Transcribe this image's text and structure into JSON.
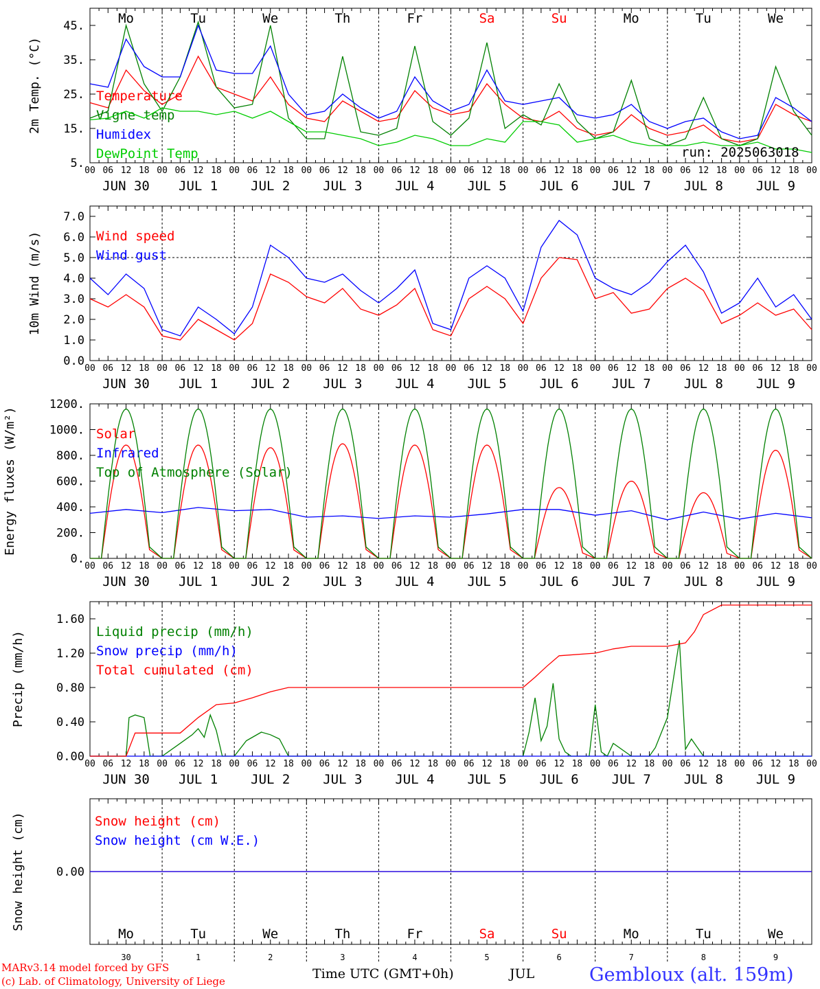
{
  "header": {
    "run_label": "run: 2025063018"
  },
  "footer": {
    "model_line": "MARv3.14 model forced by GFS",
    "copyright_line": "(c) Lab. of Climatology, University of Liege",
    "time_axis_label": "Time UTC (GMT+0h)",
    "month_label": "JUL",
    "station": "Gembloux (alt. 159m)"
  },
  "days": {
    "weekdays": [
      "Mo",
      "Tu",
      "We",
      "Th",
      "Fr",
      "Sa",
      "Su",
      "Mo",
      "Tu",
      "We"
    ],
    "weekend_flags": [
      false,
      false,
      false,
      false,
      false,
      true,
      true,
      false,
      false,
      false
    ],
    "date_labels": [
      "JUN 30",
      "JUL  1",
      "JUL  2",
      "JUL  3",
      "JUL  4",
      "JUL  5",
      "JUL  6",
      "JUL  7",
      "JUL  8",
      "JUL  9"
    ],
    "day_numbers": [
      "30",
      "1",
      "2",
      "3",
      "4",
      "5",
      "6",
      "7",
      "8",
      "9"
    ],
    "hour_ticks": [
      "00",
      "06",
      "12",
      "18"
    ],
    "final_tick": "00"
  },
  "colors": {
    "red": "#ff0000",
    "green": "#008000",
    "blue": "#0000ff",
    "lightgreen": "#00cc00",
    "weekend": "#ff0000"
  },
  "chart_data": [
    {
      "type": "line",
      "id": "temperature",
      "ylabel": "2m Temp. (°C)",
      "ylim": [
        5,
        50
      ],
      "yticks": [
        "5.",
        "15.",
        "25.",
        "35.",
        "45."
      ],
      "ytick_values": [
        5,
        15,
        25,
        35,
        45
      ],
      "x_unit": "hours since JUN 30 00 UTC",
      "grid_days": true,
      "series": [
        {
          "name": "Temperature",
          "color": "#ff0000",
          "x": [
            0,
            6,
            12,
            18,
            24,
            30,
            36,
            42,
            48,
            54,
            60,
            66,
            72,
            78,
            84,
            90,
            96,
            102,
            108,
            114,
            120,
            126,
            132,
            138,
            144,
            150,
            156,
            162,
            168,
            174,
            180,
            186,
            192,
            198,
            204,
            210,
            216,
            222,
            228,
            234,
            240
          ],
          "y": [
            22.5,
            21,
            32,
            26,
            22,
            25,
            36,
            27,
            25,
            23,
            30,
            22,
            18,
            17,
            23,
            20,
            17,
            18,
            26,
            21,
            19,
            20,
            28,
            22,
            18,
            17,
            20,
            15,
            13,
            14,
            19,
            15,
            13,
            14,
            16,
            12,
            11,
            12,
            22,
            19,
            17
          ]
        },
        {
          "name": "Vigne temp",
          "color": "#008000",
          "x": [
            0,
            6,
            12,
            18,
            24,
            30,
            36,
            42,
            48,
            54,
            60,
            66,
            72,
            78,
            84,
            90,
            96,
            102,
            108,
            114,
            120,
            126,
            132,
            138,
            144,
            150,
            156,
            162,
            168,
            174,
            180,
            186,
            192,
            198,
            204,
            210,
            216,
            222,
            228,
            234,
            240
          ],
          "y": [
            18,
            20,
            45,
            28,
            20,
            30,
            46,
            27,
            21,
            22,
            45,
            18,
            12,
            12,
            36,
            14,
            13,
            15,
            39,
            17,
            13,
            18,
            40,
            15,
            19,
            16,
            28,
            17,
            12,
            14,
            29,
            12,
            10,
            12,
            24,
            12,
            10,
            12,
            33,
            20,
            13
          ]
        },
        {
          "name": "Humidex",
          "color": "#0000ff",
          "x": [
            0,
            6,
            12,
            18,
            24,
            30,
            36,
            42,
            48,
            54,
            60,
            66,
            72,
            78,
            84,
            90,
            96,
            102,
            108,
            114,
            120,
            126,
            132,
            138,
            144,
            150,
            156,
            162,
            168,
            174,
            180,
            186,
            192,
            198,
            204,
            210,
            216,
            222,
            228,
            234,
            240
          ],
          "y": [
            28,
            27,
            41,
            33,
            30,
            30,
            45,
            32,
            31,
            31,
            39,
            25,
            19,
            20,
            25,
            21,
            18,
            20,
            30,
            23,
            20,
            22,
            32,
            23,
            22,
            23,
            24,
            19,
            18,
            19,
            22,
            17,
            15,
            17,
            18,
            14,
            12,
            13,
            24,
            21,
            17
          ]
        },
        {
          "name": "DewPoint Temp",
          "color": "#00cc00",
          "x": [
            0,
            6,
            12,
            18,
            24,
            30,
            36,
            42,
            48,
            54,
            60,
            66,
            72,
            78,
            84,
            90,
            96,
            102,
            108,
            114,
            120,
            126,
            132,
            138,
            144,
            150,
            156,
            162,
            168,
            174,
            180,
            186,
            192,
            198,
            204,
            210,
            216,
            222,
            228,
            234,
            240
          ],
          "y": [
            17.5,
            18,
            20,
            18,
            21,
            20,
            20,
            19,
            20,
            18,
            20,
            17,
            14,
            14,
            13,
            12,
            10,
            11,
            13,
            12,
            10,
            10,
            12,
            11,
            17,
            17,
            16,
            11,
            12,
            13,
            11,
            10,
            10,
            10,
            11,
            10,
            10,
            11,
            9,
            9,
            8
          ]
        }
      ]
    },
    {
      "type": "line",
      "id": "wind",
      "ylabel": "10m Wind (m/s)",
      "ylim": [
        0,
        7.5
      ],
      "yticks": [
        "0.0",
        "1.0",
        "2.0",
        "3.0",
        "4.0",
        "5.0",
        "6.0",
        "7.0"
      ],
      "ytick_values": [
        0,
        1,
        2,
        3,
        4,
        5,
        6,
        7
      ],
      "reference_line": 5.0,
      "series": [
        {
          "name": "Wind speed",
          "color": "#ff0000",
          "x": [
            0,
            6,
            12,
            18,
            24,
            30,
            36,
            42,
            48,
            54,
            60,
            66,
            72,
            78,
            84,
            90,
            96,
            102,
            108,
            114,
            120,
            126,
            132,
            138,
            144,
            150,
            156,
            162,
            168,
            174,
            180,
            186,
            192,
            198,
            204,
            210,
            216,
            222,
            228,
            234,
            240
          ],
          "y": [
            3.0,
            2.6,
            3.2,
            2.6,
            1.2,
            1.0,
            2.0,
            1.5,
            1.0,
            1.8,
            4.2,
            3.8,
            3.1,
            2.8,
            3.5,
            2.5,
            2.2,
            2.7,
            3.5,
            1.5,
            1.2,
            3.0,
            3.6,
            3.0,
            1.8,
            4.0,
            5.0,
            4.9,
            3.0,
            3.3,
            2.3,
            2.5,
            3.5,
            4.0,
            3.4,
            1.8,
            2.2,
            2.8,
            2.2,
            2.5,
            1.5
          ]
        },
        {
          "name": "Wind gust",
          "color": "#0000ff",
          "x": [
            0,
            6,
            12,
            18,
            24,
            30,
            36,
            42,
            48,
            54,
            60,
            66,
            72,
            78,
            84,
            90,
            96,
            102,
            108,
            114,
            120,
            126,
            132,
            138,
            144,
            150,
            156,
            162,
            168,
            174,
            180,
            186,
            192,
            198,
            204,
            210,
            216,
            222,
            228,
            234,
            240
          ],
          "y": [
            4.0,
            3.2,
            4.2,
            3.5,
            1.5,
            1.2,
            2.6,
            2.0,
            1.3,
            2.6,
            5.6,
            5.0,
            4.0,
            3.8,
            4.2,
            3.4,
            2.8,
            3.5,
            4.4,
            1.8,
            1.5,
            4.0,
            4.6,
            4.0,
            2.4,
            5.5,
            6.8,
            6.1,
            4.0,
            3.5,
            3.2,
            3.8,
            4.8,
            5.6,
            4.3,
            2.3,
            2.8,
            4.0,
            2.6,
            3.2,
            2.0
          ]
        }
      ]
    },
    {
      "type": "line",
      "id": "energy",
      "ylabel": "Energy fluxes (W/m²)",
      "ylim": [
        0,
        1200
      ],
      "yticks": [
        "0.",
        "200.",
        "400.",
        "600.",
        "800.",
        "1000.",
        "1200."
      ],
      "ytick_values": [
        0,
        200,
        400,
        600,
        800,
        1000,
        1200
      ],
      "series": [
        {
          "name": "Solar",
          "color": "#ff0000",
          "daily_peak": [
            880,
            880,
            860,
            890,
            880,
            880,
            550,
            600,
            510,
            840
          ]
        },
        {
          "name": "Infrared",
          "color": "#0000ff",
          "x": [
            0,
            12,
            24,
            36,
            48,
            60,
            72,
            84,
            96,
            108,
            120,
            132,
            144,
            156,
            168,
            180,
            192,
            204,
            216,
            228,
            240
          ],
          "y": [
            350,
            380,
            355,
            395,
            370,
            380,
            320,
            330,
            310,
            330,
            320,
            345,
            380,
            380,
            335,
            370,
            300,
            360,
            305,
            350,
            315
          ]
        },
        {
          "name": "Top of Atmosphere (Solar)",
          "color": "#008000",
          "daily_peak": [
            1160,
            1160,
            1160,
            1160,
            1160,
            1160,
            1160,
            1160,
            1160,
            1160
          ]
        }
      ]
    },
    {
      "type": "line",
      "id": "precip",
      "ylabel": "Precip (mm/h)",
      "ylim": [
        0,
        1.8
      ],
      "yticks": [
        "0.00",
        "0.40",
        "0.80",
        "1.20",
        "1.60"
      ],
      "ytick_values": [
        0,
        0.4,
        0.8,
        1.2,
        1.6
      ],
      "series": [
        {
          "name": "Liquid precip (mm/h)",
          "color": "#008000",
          "x": [
            0,
            12,
            13,
            15,
            18,
            20,
            24,
            30,
            34,
            36,
            38,
            40,
            42,
            44,
            48,
            52,
            54,
            57,
            60,
            63,
            66,
            72,
            144,
            146,
            148,
            150,
            152,
            154,
            156,
            158,
            160,
            166,
            168,
            170,
            172,
            174,
            180,
            186,
            188,
            192,
            196,
            198,
            200,
            204,
            240
          ],
          "y": [
            0,
            0,
            0.45,
            0.48,
            0.45,
            0,
            0,
            0.15,
            0.25,
            0.32,
            0.22,
            0.48,
            0.3,
            0,
            0,
            0.18,
            0.22,
            0.28,
            0.25,
            0.2,
            0,
            0,
            0,
            0.28,
            0.68,
            0.18,
            0.35,
            0.85,
            0.2,
            0.05,
            0,
            0,
            0.6,
            0.05,
            0,
            0.15,
            0,
            0,
            0.1,
            0.45,
            1.35,
            0.08,
            0.2,
            0,
            0
          ]
        },
        {
          "name": "Snow precip (mm/h)",
          "color": "#0000ff",
          "x": [
            0,
            240
          ],
          "y": [
            0,
            0
          ]
        },
        {
          "name": "Total cumulated (cm)",
          "color": "#ff0000",
          "x": [
            0,
            12,
            15,
            24,
            30,
            36,
            42,
            48,
            54,
            60,
            66,
            72,
            144,
            148,
            152,
            156,
            168,
            174,
            180,
            186,
            192,
            198,
            201,
            204,
            210,
            240
          ],
          "y": [
            0,
            0,
            0.27,
            0.27,
            0.27,
            0.45,
            0.6,
            0.62,
            0.68,
            0.75,
            0.8,
            0.8,
            0.8,
            0.92,
            1.05,
            1.17,
            1.2,
            1.25,
            1.28,
            1.28,
            1.28,
            1.32,
            1.45,
            1.65,
            1.76,
            1.76
          ]
        }
      ]
    },
    {
      "type": "line",
      "id": "snow",
      "ylabel": "Snow height (cm)",
      "ylim": [
        -1,
        1
      ],
      "yticks": [
        "0.00"
      ],
      "ytick_values": [
        0
      ],
      "series": [
        {
          "name": "Snow height (cm)",
          "color": "#ff0000",
          "x": [
            0,
            240
          ],
          "y": [
            0,
            0
          ]
        },
        {
          "name": "Snow height (cm W.E.)",
          "color": "#0000ff",
          "x": [
            0,
            240
          ],
          "y": [
            0,
            0
          ]
        }
      ]
    }
  ]
}
